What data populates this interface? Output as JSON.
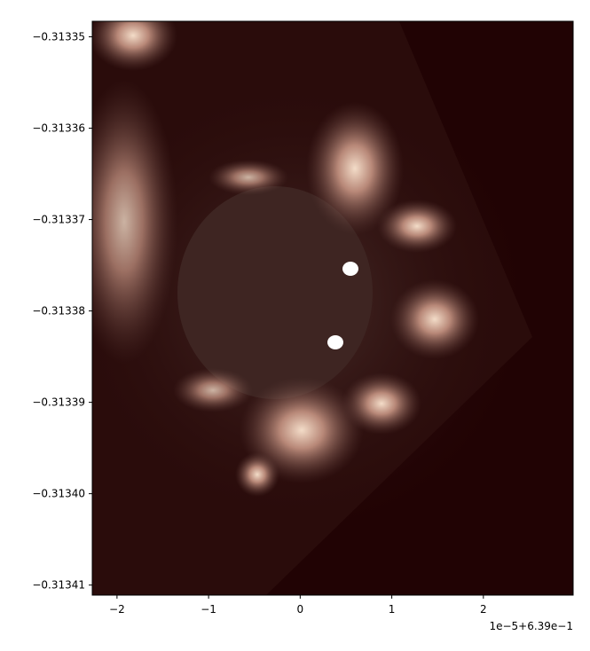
{
  "chart_data": {
    "type": "image",
    "colormap": "pink-dark",
    "x_offset_label": "1e−5+6.39e−1",
    "xlim": [
      -2.27,
      2.98
    ],
    "xticks": [
      {
        "value": -2,
        "label": "−2"
      },
      {
        "value": -1,
        "label": "−1"
      },
      0,
      1,
      2
    ],
    "ylim": [
      -0.3134111,
      -0.3133483
    ],
    "yticks": [
      {
        "value": -0.31335,
        "label": "−0.31335"
      },
      {
        "value": -0.31336,
        "label": "−0.31336"
      },
      {
        "value": -0.31337,
        "label": "−0.31337"
      },
      {
        "value": -0.31338,
        "label": "−0.31338"
      },
      {
        "value": -0.31339,
        "label": "−0.31339"
      },
      {
        "value": -0.3134,
        "label": "−0.31340"
      },
      {
        "value": -0.31341,
        "label": "−0.31341"
      }
    ]
  }
}
